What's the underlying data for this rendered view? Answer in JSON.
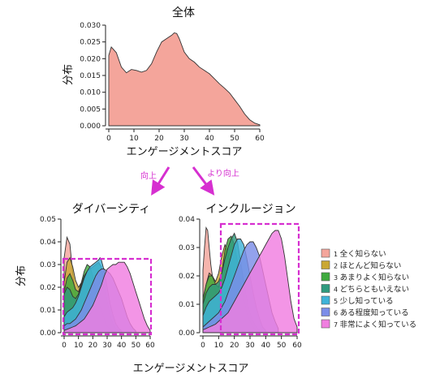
{
  "chart_data": [
    {
      "type": "area",
      "title": "全体",
      "xlabel": "エンゲージメントスコア",
      "ylabel": "分布",
      "xlim": [
        0,
        60
      ],
      "ylim": [
        0,
        0.03
      ],
      "xticks": [
        "0",
        "10",
        "20",
        "30",
        "40",
        "50",
        "60"
      ],
      "yticks": [
        "0.000",
        "0.005",
        "0.010",
        "0.015",
        "0.020",
        "0.025",
        "0.030"
      ],
      "color": "#f4a59b",
      "series": [
        {
          "x": [
            0,
            1,
            3,
            5,
            7,
            9,
            11,
            13,
            15,
            17,
            19,
            21,
            23,
            25,
            26,
            27,
            28,
            30,
            32,
            34,
            36,
            38,
            40,
            42,
            44,
            46,
            48,
            50,
            52,
            54,
            56,
            58,
            60
          ],
          "values": [
            0.021,
            0.0235,
            0.0218,
            0.0175,
            0.0158,
            0.0168,
            0.0165,
            0.016,
            0.0165,
            0.0185,
            0.022,
            0.025,
            0.026,
            0.027,
            0.0277,
            0.0275,
            0.026,
            0.022,
            0.02,
            0.019,
            0.0175,
            0.0165,
            0.0155,
            0.014,
            0.0125,
            0.0112,
            0.0098,
            0.0078,
            0.0058,
            0.0035,
            0.0018,
            0.0008,
            0.0003
          ]
        }
      ]
    },
    {
      "type": "area",
      "title": "ダイバーシティ",
      "xlabel": "エンゲージメントスコア",
      "ylabel": "分布",
      "xlim": [
        0,
        60
      ],
      "ylim": [
        0,
        0.05
      ],
      "xticks": [
        "0",
        "10",
        "20",
        "30",
        "40",
        "50",
        "60"
      ],
      "yticks": [
        "0.00",
        "0.01",
        "0.02",
        "0.03",
        "0.04",
        "0.05"
      ],
      "series": [
        {
          "name": "全く知らない",
          "color": "#f4a59b",
          "x": [
            0,
            2,
            4,
            6,
            8,
            10,
            12,
            14,
            16,
            18,
            20,
            22,
            24
          ],
          "values": [
            0.033,
            0.042,
            0.039,
            0.026,
            0.017,
            0.011,
            0.007,
            0.004,
            0.0025,
            0.0015,
            0.0008,
            0.0004,
            0.0002
          ]
        },
        {
          "name": "ほとんど知らない",
          "color": "#c9a734",
          "x": [
            0,
            2,
            4,
            6,
            8,
            10,
            12,
            14,
            16,
            18,
            20,
            22,
            24,
            26,
            28,
            30,
            32
          ],
          "values": [
            0.022,
            0.031,
            0.033,
            0.029,
            0.023,
            0.02,
            0.022,
            0.025,
            0.026,
            0.023,
            0.018,
            0.012,
            0.007,
            0.004,
            0.002,
            0.001,
            0.0005
          ]
        },
        {
          "name": "あまりよく知らない",
          "color": "#3faa3f",
          "x": [
            0,
            2,
            4,
            6,
            8,
            10,
            12,
            14,
            16,
            18,
            20,
            22,
            24,
            26,
            28,
            30,
            32,
            34
          ],
          "values": [
            0.018,
            0.024,
            0.026,
            0.023,
            0.019,
            0.018,
            0.022,
            0.027,
            0.03,
            0.029,
            0.025,
            0.019,
            0.014,
            0.01,
            0.006,
            0.003,
            0.0015,
            0.0005
          ]
        },
        {
          "name": "どちらともいえない",
          "color": "#2f9a7e",
          "x": [
            0,
            2,
            4,
            6,
            8,
            10,
            12,
            14,
            16,
            18,
            20,
            22,
            24,
            26,
            28,
            30,
            32,
            34,
            36,
            38
          ],
          "values": [
            0.017,
            0.02,
            0.019,
            0.016,
            0.015,
            0.017,
            0.021,
            0.025,
            0.027,
            0.028,
            0.029,
            0.03,
            0.031,
            0.029,
            0.022,
            0.014,
            0.008,
            0.004,
            0.002,
            0.0008
          ]
        },
        {
          "name": "少し知っている",
          "color": "#3fb3d8",
          "x": [
            0,
            2,
            4,
            6,
            8,
            10,
            12,
            14,
            16,
            18,
            20,
            22,
            24,
            25,
            26,
            28,
            30,
            32,
            34,
            36,
            38,
            40
          ],
          "values": [
            0.007,
            0.009,
            0.01,
            0.011,
            0.013,
            0.016,
            0.02,
            0.024,
            0.027,
            0.029,
            0.03,
            0.031,
            0.032,
            0.033,
            0.032,
            0.027,
            0.02,
            0.013,
            0.008,
            0.004,
            0.002,
            0.0008
          ]
        },
        {
          "name": "ある程度知っている",
          "color": "#7b8de8",
          "x": [
            0,
            2,
            4,
            6,
            8,
            10,
            12,
            14,
            16,
            18,
            20,
            22,
            24,
            26,
            28,
            30,
            32,
            34,
            36,
            38,
            40,
            42,
            44,
            46,
            48,
            50
          ],
          "values": [
            0.003,
            0.004,
            0.004,
            0.005,
            0.006,
            0.008,
            0.01,
            0.013,
            0.016,
            0.019,
            0.022,
            0.025,
            0.027,
            0.028,
            0.028,
            0.027,
            0.026,
            0.024,
            0.021,
            0.018,
            0.015,
            0.011,
            0.007,
            0.004,
            0.002,
            0.0008
          ]
        },
        {
          "name": "非常によく知っている",
          "color": "#f07ee0",
          "x": [
            0,
            2,
            4,
            6,
            8,
            10,
            12,
            14,
            16,
            18,
            20,
            22,
            24,
            26,
            28,
            30,
            32,
            34,
            36,
            38,
            40,
            42,
            44,
            46,
            48,
            50,
            52,
            54,
            56,
            58,
            60
          ],
          "values": [
            0.001,
            0.0015,
            0.002,
            0.0025,
            0.003,
            0.004,
            0.005,
            0.006,
            0.008,
            0.01,
            0.012,
            0.015,
            0.018,
            0.021,
            0.025,
            0.028,
            0.029,
            0.03,
            0.03,
            0.031,
            0.031,
            0.031,
            0.029,
            0.026,
            0.022,
            0.018,
            0.014,
            0.01,
            0.006,
            0.003,
            0.001
          ]
        }
      ]
    },
    {
      "type": "area",
      "title": "インクルージョン",
      "xlabel": "エンゲージメントスコア",
      "ylabel": "",
      "xlim": [
        0,
        60
      ],
      "ylim": [
        0,
        0.04
      ],
      "xticks": [
        "0",
        "10",
        "20",
        "30",
        "40",
        "50",
        "60"
      ],
      "yticks": [
        "0.00",
        "0.01",
        "0.02",
        "0.03",
        "0.04"
      ],
      "series": [
        {
          "name": "全く知らない",
          "color": "#f4a59b",
          "x": [
            0,
            1,
            2,
            3,
            4,
            5,
            6,
            7,
            8,
            9,
            10,
            11,
            12,
            14,
            16,
            18
          ],
          "values": [
            0.022,
            0.03,
            0.037,
            0.036,
            0.03,
            0.024,
            0.02,
            0.017,
            0.015,
            0.013,
            0.011,
            0.008,
            0.006,
            0.003,
            0.0012,
            0.0004
          ]
        },
        {
          "name": "ほとんど知らない",
          "color": "#c9a734",
          "x": [
            0,
            2,
            4,
            6,
            8,
            10,
            12,
            14,
            16,
            18,
            20,
            22,
            24,
            26,
            28,
            30
          ],
          "values": [
            0.01,
            0.017,
            0.021,
            0.02,
            0.018,
            0.021,
            0.027,
            0.031,
            0.028,
            0.02,
            0.013,
            0.008,
            0.004,
            0.002,
            0.001,
            0.0004
          ]
        },
        {
          "name": "あまりよく知らない",
          "color": "#3faa3f",
          "x": [
            0,
            2,
            4,
            6,
            8,
            10,
            12,
            14,
            16,
            18,
            20,
            22,
            24,
            26,
            28,
            30,
            32,
            34
          ],
          "values": [
            0.012,
            0.017,
            0.02,
            0.02,
            0.017,
            0.016,
            0.021,
            0.029,
            0.033,
            0.034,
            0.031,
            0.025,
            0.018,
            0.012,
            0.007,
            0.004,
            0.002,
            0.0007
          ]
        },
        {
          "name": "どちらともいえない",
          "color": "#2f9a7e",
          "x": [
            0,
            2,
            4,
            6,
            8,
            10,
            12,
            14,
            16,
            18,
            20,
            22,
            24,
            26,
            28,
            30,
            32,
            34,
            36
          ],
          "values": [
            0.01,
            0.014,
            0.016,
            0.017,
            0.017,
            0.018,
            0.021,
            0.026,
            0.03,
            0.033,
            0.035,
            0.032,
            0.025,
            0.018,
            0.012,
            0.007,
            0.004,
            0.002,
            0.0008
          ]
        },
        {
          "name": "少し知っている",
          "color": "#3fb3d8",
          "x": [
            0,
            2,
            4,
            6,
            8,
            10,
            12,
            14,
            16,
            18,
            20,
            22,
            24,
            26,
            28,
            30,
            32,
            34,
            36,
            38,
            40
          ],
          "values": [
            0.006,
            0.009,
            0.011,
            0.012,
            0.013,
            0.014,
            0.016,
            0.019,
            0.023,
            0.027,
            0.031,
            0.033,
            0.033,
            0.031,
            0.026,
            0.02,
            0.014,
            0.009,
            0.005,
            0.002,
            0.0008
          ]
        },
        {
          "name": "ある程度知っている",
          "color": "#7b8de8",
          "x": [
            0,
            2,
            4,
            6,
            8,
            10,
            12,
            14,
            16,
            18,
            20,
            22,
            24,
            26,
            28,
            30,
            32,
            34,
            36,
            38,
            40,
            42,
            44,
            46,
            48
          ],
          "values": [
            0.002,
            0.003,
            0.004,
            0.005,
            0.006,
            0.007,
            0.009,
            0.011,
            0.014,
            0.017,
            0.02,
            0.023,
            0.026,
            0.029,
            0.031,
            0.032,
            0.032,
            0.03,
            0.027,
            0.022,
            0.017,
            0.012,
            0.007,
            0.004,
            0.0015
          ]
        },
        {
          "name": "非常によく知っている",
          "color": "#f07ee0",
          "x": [
            0,
            2,
            4,
            6,
            8,
            10,
            12,
            14,
            16,
            18,
            20,
            22,
            24,
            26,
            28,
            30,
            32,
            34,
            36,
            38,
            40,
            42,
            44,
            46,
            48,
            50,
            52,
            54,
            56,
            58,
            60
          ],
          "values": [
            0.001,
            0.0015,
            0.002,
            0.0025,
            0.003,
            0.004,
            0.005,
            0.006,
            0.007,
            0.009,
            0.011,
            0.013,
            0.015,
            0.017,
            0.019,
            0.021,
            0.023,
            0.025,
            0.027,
            0.029,
            0.031,
            0.033,
            0.035,
            0.036,
            0.036,
            0.033,
            0.027,
            0.019,
            0.011,
            0.005,
            0.002
          ]
        }
      ]
    }
  ],
  "legend": {
    "placement": "right",
    "items": [
      {
        "num": "1",
        "label": "全く知らない",
        "color": "#f4a59b"
      },
      {
        "num": "2",
        "label": "ほとんど知らない",
        "color": "#c9a734"
      },
      {
        "num": "3",
        "label": "あまりよく知らない",
        "color": "#3faa3f"
      },
      {
        "num": "4",
        "label": "どちらともいえない",
        "color": "#2f9a7e"
      },
      {
        "num": "5",
        "label": "少し知っている",
        "color": "#3fb3d8"
      },
      {
        "num": "6",
        "label": "ある程度知っている",
        "color": "#7b8de8"
      },
      {
        "num": "7",
        "label": "非常によく知っている",
        "color": "#f07ee0"
      }
    ]
  },
  "annotations": {
    "left_arrow": "向上",
    "right_arrow": "より向上",
    "highlight_color": "#d62fd0"
  },
  "bottom_xlabel": "エンゲージメントスコア"
}
